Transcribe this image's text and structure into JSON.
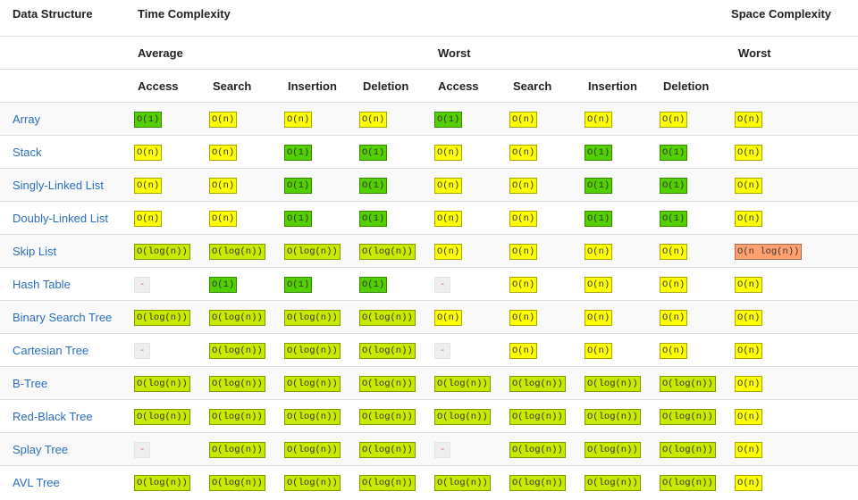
{
  "header": {
    "data_structure": "Data Structure",
    "time_complexity": "Time Complexity",
    "space_complexity": "Space Complexity",
    "average": "Average",
    "worst": "Worst",
    "space_worst": "Worst",
    "operations": [
      "Access",
      "Search",
      "Insertion",
      "Deletion",
      "Access",
      "Search",
      "Insertion",
      "Deletion"
    ]
  },
  "rows": [
    {
      "name": "Array",
      "cells": [
        {
          "text": "O(1)",
          "color": "#53d000"
        },
        {
          "text": "O(n)",
          "color": "#ffff00"
        },
        {
          "text": "O(n)",
          "color": "#ffff00"
        },
        {
          "text": "O(n)",
          "color": "#ffff00"
        },
        {
          "text": "O(1)",
          "color": "#53d000"
        },
        {
          "text": "O(n)",
          "color": "#ffff00"
        },
        {
          "text": "O(n)",
          "color": "#ffff00"
        },
        {
          "text": "O(n)",
          "color": "#ffff00"
        },
        {
          "text": "O(n)",
          "color": "#ffff00"
        }
      ]
    },
    {
      "name": "Stack",
      "cells": [
        {
          "text": "O(n)",
          "color": "#ffff00"
        },
        {
          "text": "O(n)",
          "color": "#ffff00"
        },
        {
          "text": "O(1)",
          "color": "#53d000"
        },
        {
          "text": "O(1)",
          "color": "#53d000"
        },
        {
          "text": "O(n)",
          "color": "#ffff00"
        },
        {
          "text": "O(n)",
          "color": "#ffff00"
        },
        {
          "text": "O(1)",
          "color": "#53d000"
        },
        {
          "text": "O(1)",
          "color": "#53d000"
        },
        {
          "text": "O(n)",
          "color": "#ffff00"
        }
      ]
    },
    {
      "name": "Singly-Linked List",
      "cells": [
        {
          "text": "O(n)",
          "color": "#ffff00"
        },
        {
          "text": "O(n)",
          "color": "#ffff00"
        },
        {
          "text": "O(1)",
          "color": "#53d000"
        },
        {
          "text": "O(1)",
          "color": "#53d000"
        },
        {
          "text": "O(n)",
          "color": "#ffff00"
        },
        {
          "text": "O(n)",
          "color": "#ffff00"
        },
        {
          "text": "O(1)",
          "color": "#53d000"
        },
        {
          "text": "O(1)",
          "color": "#53d000"
        },
        {
          "text": "O(n)",
          "color": "#ffff00"
        }
      ]
    },
    {
      "name": "Doubly-Linked List",
      "cells": [
        {
          "text": "O(n)",
          "color": "#ffff00"
        },
        {
          "text": "O(n)",
          "color": "#ffff00"
        },
        {
          "text": "O(1)",
          "color": "#53d000"
        },
        {
          "text": "O(1)",
          "color": "#53d000"
        },
        {
          "text": "O(n)",
          "color": "#ffff00"
        },
        {
          "text": "O(n)",
          "color": "#ffff00"
        },
        {
          "text": "O(1)",
          "color": "#53d000"
        },
        {
          "text": "O(1)",
          "color": "#53d000"
        },
        {
          "text": "O(n)",
          "color": "#ffff00"
        }
      ]
    },
    {
      "name": "Skip List",
      "cells": [
        {
          "text": "O(log(n))",
          "color": "#c8ea00"
        },
        {
          "text": "O(log(n))",
          "color": "#c8ea00"
        },
        {
          "text": "O(log(n))",
          "color": "#c8ea00"
        },
        {
          "text": "O(log(n))",
          "color": "#c8ea00"
        },
        {
          "text": "O(n)",
          "color": "#ffff00"
        },
        {
          "text": "O(n)",
          "color": "#ffff00"
        },
        {
          "text": "O(n)",
          "color": "#ffff00"
        },
        {
          "text": "O(n)",
          "color": "#ffff00"
        },
        {
          "text": "O(n log(n))",
          "color": "#ffa070"
        }
      ]
    },
    {
      "name": "Hash Table",
      "cells": [
        {
          "text": "-",
          "color": "#eeeeee"
        },
        {
          "text": "O(1)",
          "color": "#53d000"
        },
        {
          "text": "O(1)",
          "color": "#53d000"
        },
        {
          "text": "O(1)",
          "color": "#53d000"
        },
        {
          "text": "-",
          "color": "#eeeeee"
        },
        {
          "text": "O(n)",
          "color": "#ffff00"
        },
        {
          "text": "O(n)",
          "color": "#ffff00"
        },
        {
          "text": "O(n)",
          "color": "#ffff00"
        },
        {
          "text": "O(n)",
          "color": "#ffff00"
        }
      ]
    },
    {
      "name": "Binary Search Tree",
      "cells": [
        {
          "text": "O(log(n))",
          "color": "#c8ea00"
        },
        {
          "text": "O(log(n))",
          "color": "#c8ea00"
        },
        {
          "text": "O(log(n))",
          "color": "#c8ea00"
        },
        {
          "text": "O(log(n))",
          "color": "#c8ea00"
        },
        {
          "text": "O(n)",
          "color": "#ffff00"
        },
        {
          "text": "O(n)",
          "color": "#ffff00"
        },
        {
          "text": "O(n)",
          "color": "#ffff00"
        },
        {
          "text": "O(n)",
          "color": "#ffff00"
        },
        {
          "text": "O(n)",
          "color": "#ffff00"
        }
      ]
    },
    {
      "name": "Cartesian Tree",
      "cells": [
        {
          "text": "-",
          "color": "#eeeeee"
        },
        {
          "text": "O(log(n))",
          "color": "#c8ea00"
        },
        {
          "text": "O(log(n))",
          "color": "#c8ea00"
        },
        {
          "text": "O(log(n))",
          "color": "#c8ea00"
        },
        {
          "text": "-",
          "color": "#eeeeee"
        },
        {
          "text": "O(n)",
          "color": "#ffff00"
        },
        {
          "text": "O(n)",
          "color": "#ffff00"
        },
        {
          "text": "O(n)",
          "color": "#ffff00"
        },
        {
          "text": "O(n)",
          "color": "#ffff00"
        }
      ]
    },
    {
      "name": "B-Tree",
      "cells": [
        {
          "text": "O(log(n))",
          "color": "#c8ea00"
        },
        {
          "text": "O(log(n))",
          "color": "#c8ea00"
        },
        {
          "text": "O(log(n))",
          "color": "#c8ea00"
        },
        {
          "text": "O(log(n))",
          "color": "#c8ea00"
        },
        {
          "text": "O(log(n))",
          "color": "#c8ea00"
        },
        {
          "text": "O(log(n))",
          "color": "#c8ea00"
        },
        {
          "text": "O(log(n))",
          "color": "#c8ea00"
        },
        {
          "text": "O(log(n))",
          "color": "#c8ea00"
        },
        {
          "text": "O(n)",
          "color": "#ffff00"
        }
      ]
    },
    {
      "name": "Red-Black Tree",
      "cells": [
        {
          "text": "O(log(n))",
          "color": "#c8ea00"
        },
        {
          "text": "O(log(n))",
          "color": "#c8ea00"
        },
        {
          "text": "O(log(n))",
          "color": "#c8ea00"
        },
        {
          "text": "O(log(n))",
          "color": "#c8ea00"
        },
        {
          "text": "O(log(n))",
          "color": "#c8ea00"
        },
        {
          "text": "O(log(n))",
          "color": "#c8ea00"
        },
        {
          "text": "O(log(n))",
          "color": "#c8ea00"
        },
        {
          "text": "O(log(n))",
          "color": "#c8ea00"
        },
        {
          "text": "O(n)",
          "color": "#ffff00"
        }
      ]
    },
    {
      "name": "Splay Tree",
      "cells": [
        {
          "text": "-",
          "color": "#eeeeee"
        },
        {
          "text": "O(log(n))",
          "color": "#c8ea00"
        },
        {
          "text": "O(log(n))",
          "color": "#c8ea00"
        },
        {
          "text": "O(log(n))",
          "color": "#c8ea00"
        },
        {
          "text": "-",
          "color": "#eeeeee"
        },
        {
          "text": "O(log(n))",
          "color": "#c8ea00"
        },
        {
          "text": "O(log(n))",
          "color": "#c8ea00"
        },
        {
          "text": "O(log(n))",
          "color": "#c8ea00"
        },
        {
          "text": "O(n)",
          "color": "#ffff00"
        }
      ]
    },
    {
      "name": "AVL Tree",
      "cells": [
        {
          "text": "O(log(n))",
          "color": "#c8ea00"
        },
        {
          "text": "O(log(n))",
          "color": "#c8ea00"
        },
        {
          "text": "O(log(n))",
          "color": "#c8ea00"
        },
        {
          "text": "O(log(n))",
          "color": "#c8ea00"
        },
        {
          "text": "O(log(n))",
          "color": "#c8ea00"
        },
        {
          "text": "O(log(n))",
          "color": "#c8ea00"
        },
        {
          "text": "O(log(n))",
          "color": "#c8ea00"
        },
        {
          "text": "O(log(n))",
          "color": "#c8ea00"
        },
        {
          "text": "O(n)",
          "color": "#ffff00"
        }
      ]
    }
  ]
}
